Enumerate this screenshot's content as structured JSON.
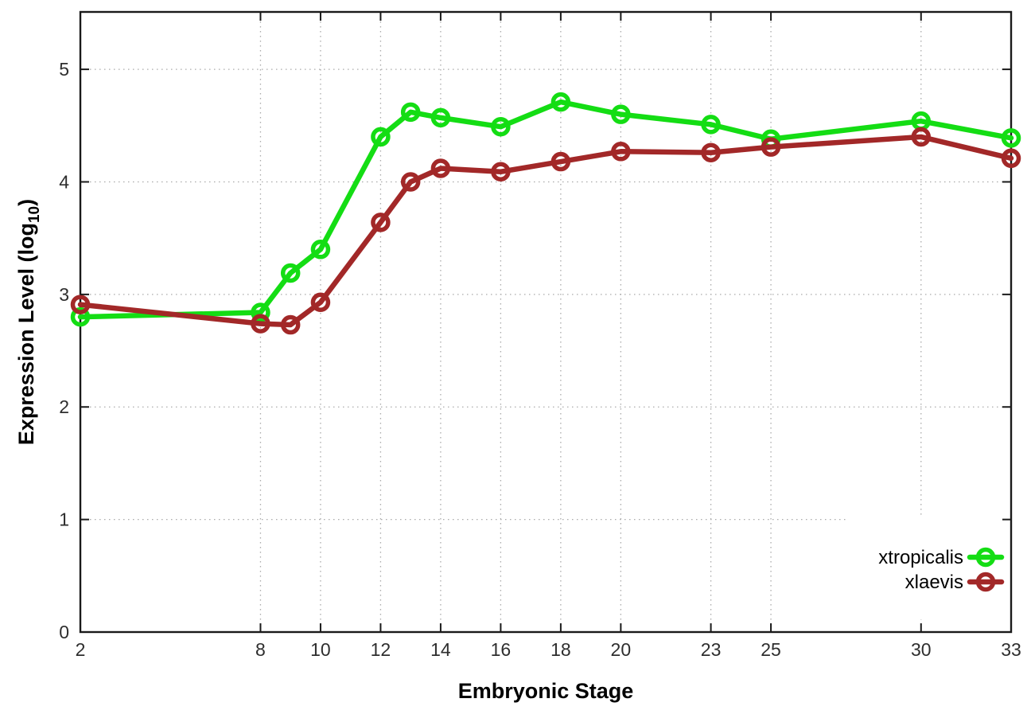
{
  "chart_data": {
    "type": "line",
    "title": "",
    "xlabel": "Embryonic Stage",
    "ylabel": "Expression Level (log10)",
    "ylabel_parts": {
      "pre": "Expression Level (log",
      "sub": "10",
      "post": ")"
    },
    "x": [
      2,
      8,
      9,
      10,
      12,
      13,
      14,
      16,
      18,
      20,
      23,
      25,
      30,
      33
    ],
    "xticks": [
      2,
      8,
      10,
      12,
      14,
      16,
      18,
      20,
      23,
      25,
      30,
      33
    ],
    "yticks": [
      0,
      1,
      2,
      3,
      4,
      5
    ],
    "xlim": [
      2,
      33
    ],
    "ylim": [
      0,
      5.51
    ],
    "grid": true,
    "legend_position": "bottom-right-inside",
    "series": [
      {
        "name": "xtropicalis",
        "color": "#14dd14",
        "values": [
          2.8,
          2.84,
          3.19,
          3.4,
          4.4,
          4.62,
          4.57,
          4.49,
          4.71,
          4.6,
          4.51,
          4.38,
          4.54,
          4.39
        ]
      },
      {
        "name": "xlaevis",
        "color": "#a22828",
        "values": [
          2.91,
          2.74,
          2.73,
          2.93,
          3.64,
          4.0,
          4.12,
          4.09,
          4.18,
          4.27,
          4.26,
          4.31,
          4.4,
          4.21
        ]
      }
    ],
    "colors": {
      "border": "#1a1a1a",
      "grid": "#aaaaaa",
      "tick_label": "#2e2e2e",
      "axis_title": "#000000",
      "legend_text": "#000000",
      "background": "#ffffff"
    }
  }
}
